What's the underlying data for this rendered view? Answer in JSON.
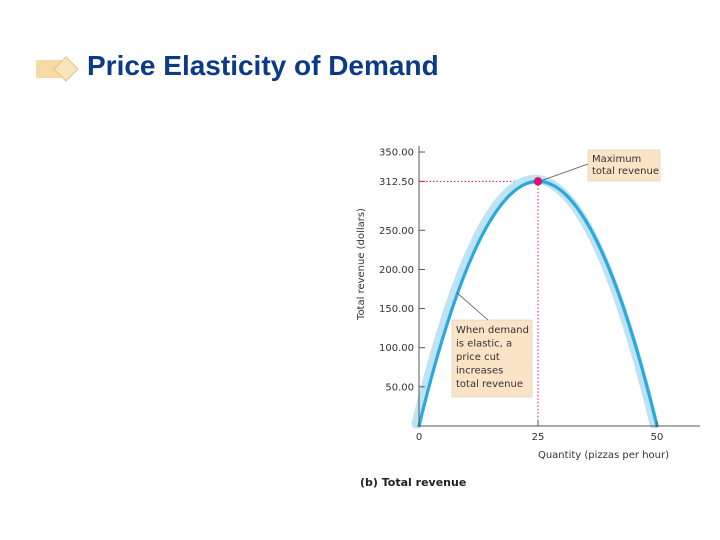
{
  "slide": {
    "title": "Price Elasticity of Demand"
  },
  "colors": {
    "title": "#0b3a86",
    "curve": "#29a9dc",
    "curve_shadow": "#bfe3f3",
    "highlight": "#d4146f",
    "callout_fill": "#fbe3c6",
    "bullet": "#f6d9a4"
  },
  "chart_data": {
    "type": "line",
    "caption": "(b) Total revenue",
    "xlabel": "Quantity (pizzas per hour)",
    "ylabel": "Total revenue (dollars)",
    "xlim": [
      0,
      50
    ],
    "ylim": [
      0,
      350
    ],
    "grid": false,
    "x_ticks": [
      {
        "value": 0,
        "label": "0",
        "highlight": false
      },
      {
        "value": 25,
        "label": "25",
        "highlight": true
      },
      {
        "value": 50,
        "label": "50",
        "highlight": false
      }
    ],
    "y_ticks": [
      {
        "value": 50,
        "label": "50.00",
        "highlight": false
      },
      {
        "value": 100,
        "label": "100.00",
        "highlight": false
      },
      {
        "value": 150,
        "label": "150.00",
        "highlight": false
      },
      {
        "value": 200,
        "label": "200.00",
        "highlight": false
      },
      {
        "value": 250,
        "label": "250.00",
        "highlight": false
      },
      {
        "value": 312.5,
        "label": "312.50",
        "highlight": true
      },
      {
        "value": 350,
        "label": "350.00",
        "highlight": false
      }
    ],
    "series": [
      {
        "x": [
          0,
          5,
          10,
          15,
          20,
          25,
          30,
          35,
          40,
          45,
          50
        ],
        "y": [
          0,
          112.5,
          200,
          262.5,
          300,
          312.5,
          300,
          262.5,
          200,
          112.5,
          0
        ]
      }
    ],
    "max_point": {
      "x": 25,
      "y": 312.5
    },
    "annotations": [
      {
        "lines": [
          "Maximum",
          "total revenue"
        ],
        "target": {
          "x": 25,
          "y": 312.5
        }
      },
      {
        "lines": [
          "When demand",
          "is elastic, a",
          "price cut",
          "increases",
          "total revenue"
        ],
        "target": {
          "x": 8,
          "y": 170
        }
      }
    ]
  }
}
